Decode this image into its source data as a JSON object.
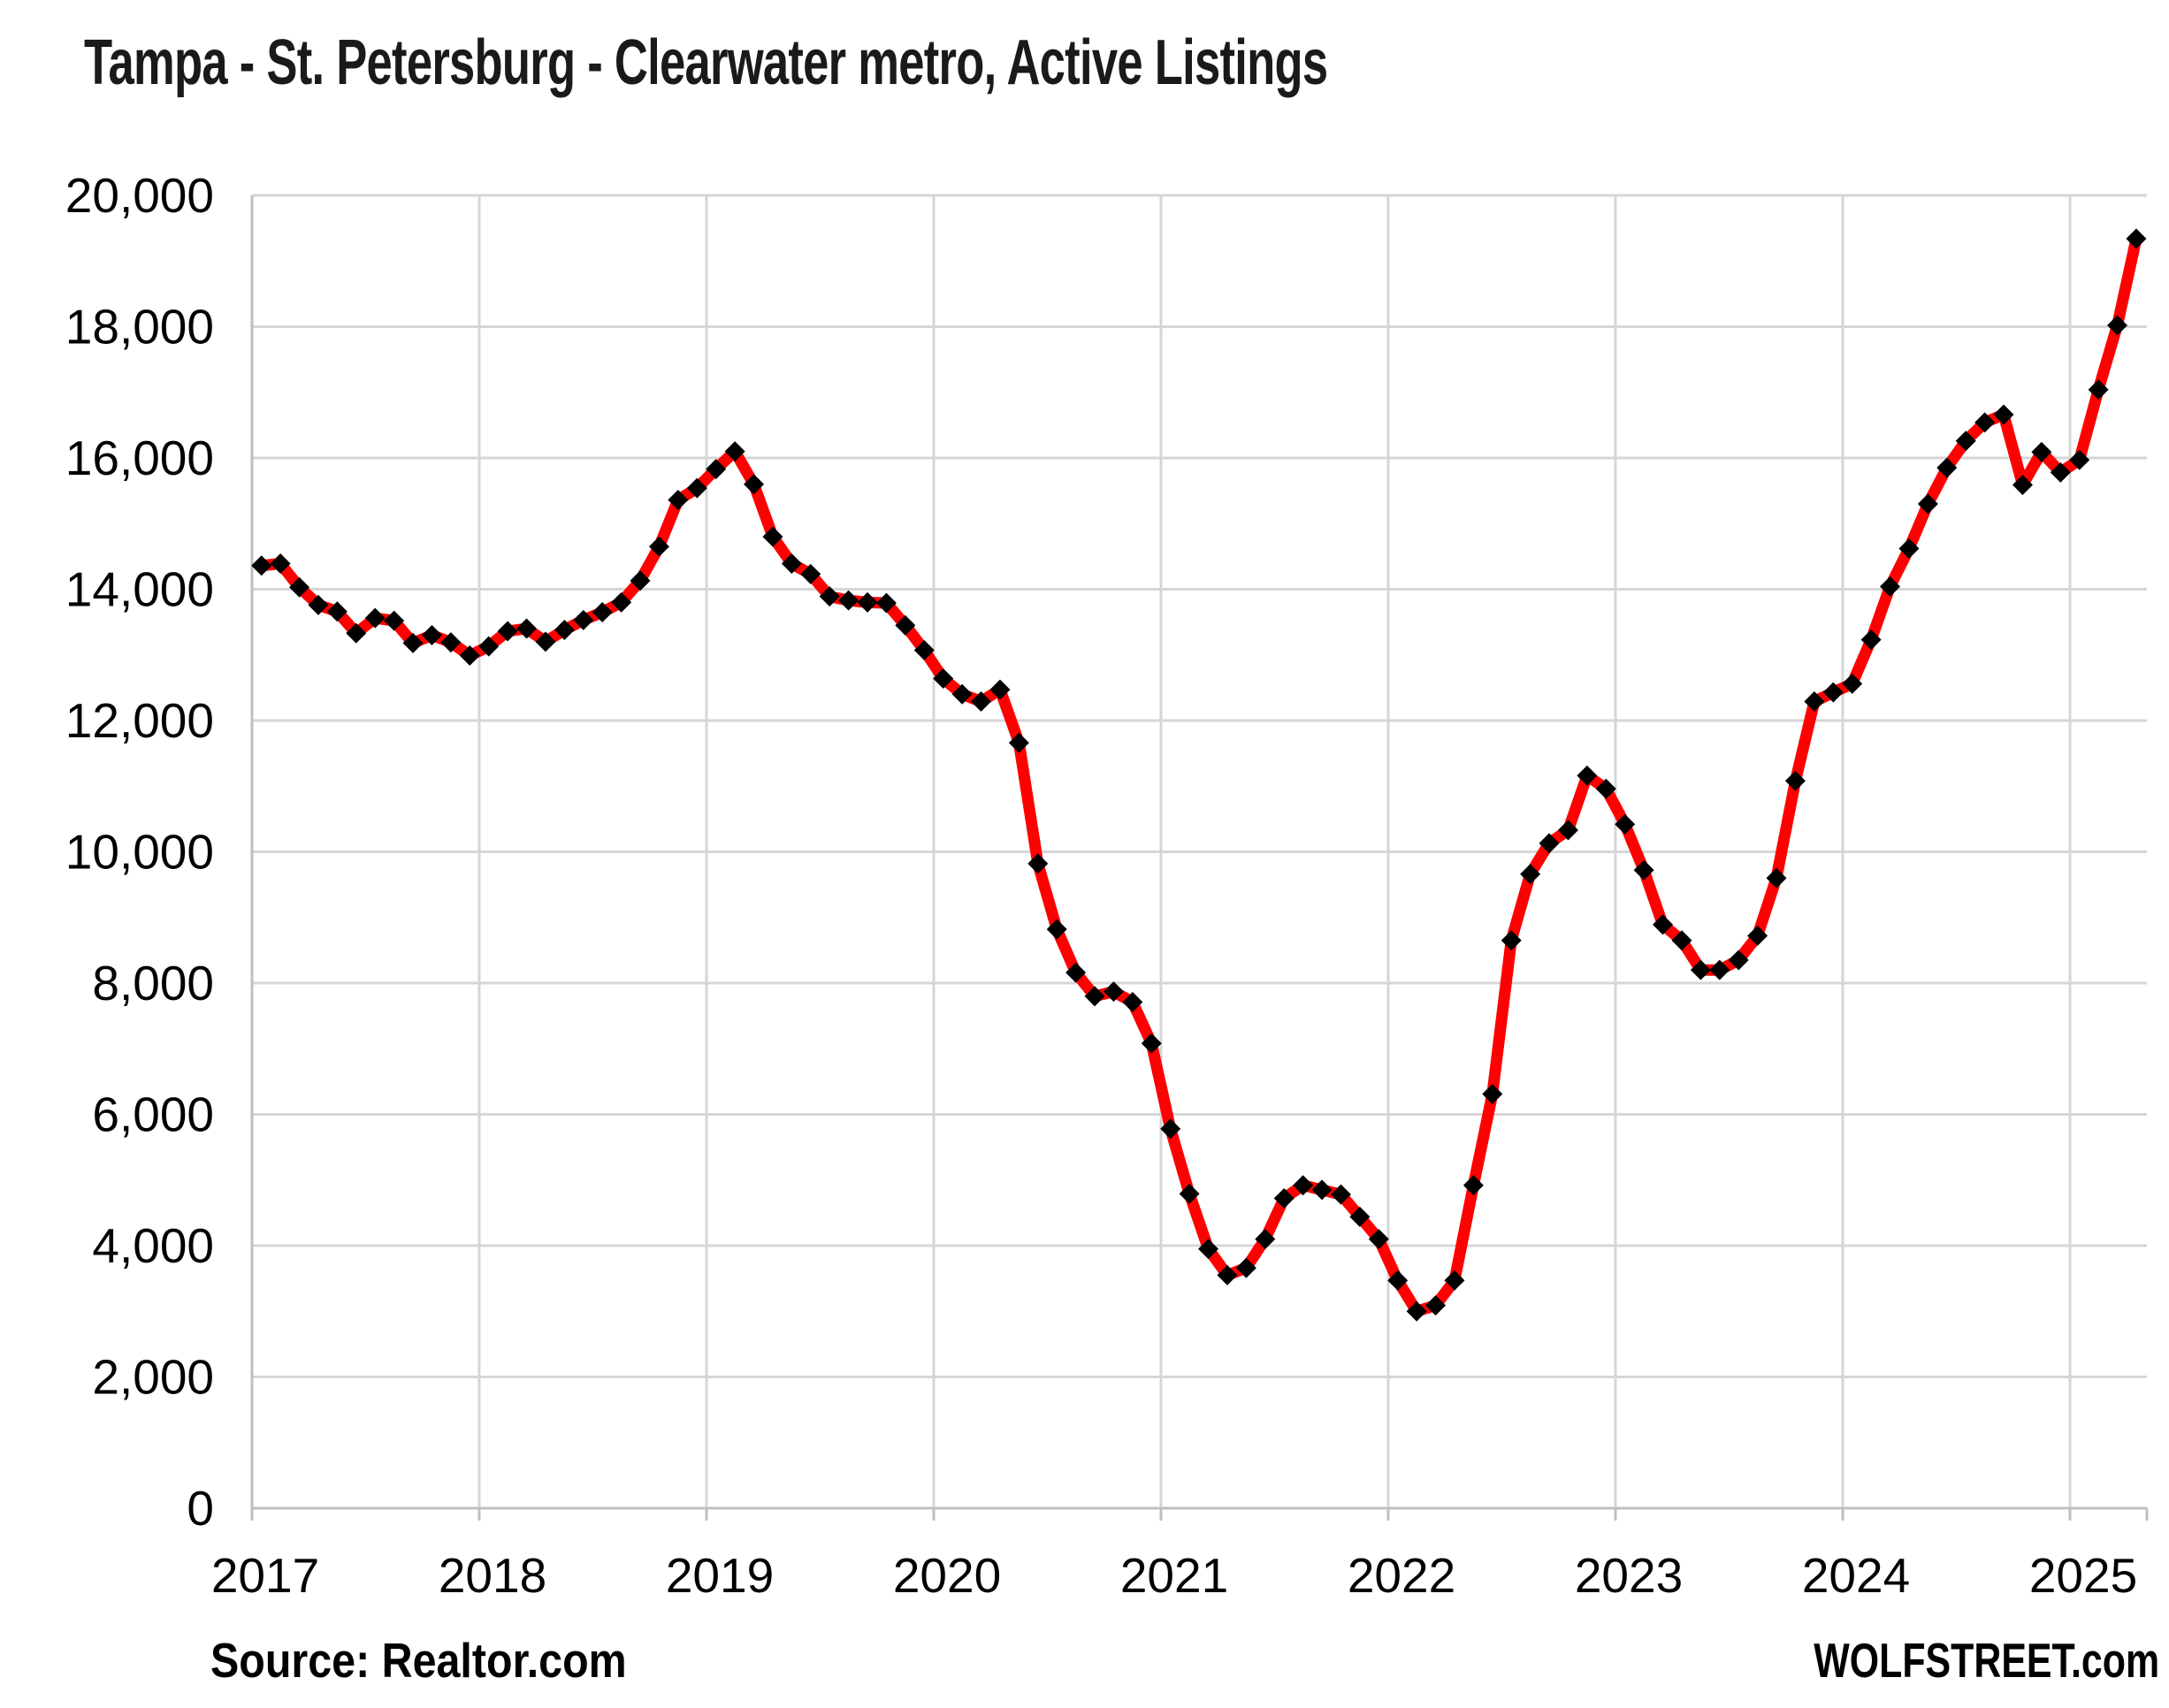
{
  "chart_data": {
    "type": "line",
    "title": "Tampa - St. Petersburg - Clearwater metro, Active Listings",
    "xlabel": "",
    "ylabel": "",
    "x_start": "2017-01",
    "x_end": "2025-04",
    "frequency": "monthly",
    "values": [
      14360,
      14390,
      14030,
      13760,
      13660,
      13330,
      13560,
      13520,
      13180,
      13300,
      13190,
      12990,
      13130,
      13360,
      13400,
      13200,
      13380,
      13530,
      13650,
      13800,
      14130,
      14650,
      15360,
      15540,
      15830,
      16100,
      15600,
      14800,
      14390,
      14230,
      13890,
      13830,
      13800,
      13790,
      13450,
      13070,
      12640,
      12400,
      12290,
      12470,
      11660,
      9820,
      8820,
      8160,
      7800,
      7870,
      7710,
      7080,
      5780,
      4790,
      3950,
      3550,
      3660,
      4100,
      4720,
      4920,
      4850,
      4780,
      4440,
      4100,
      3470,
      3000,
      3090,
      3470,
      4920,
      6310,
      8650,
      9660,
      10130,
      10330,
      11160,
      10960,
      10420,
      9720,
      8890,
      8650,
      8200,
      8200,
      8350,
      8720,
      9600,
      11080,
      12290,
      12430,
      12560,
      13230,
      14040,
      14620,
      15300,
      15850,
      16260,
      16540,
      16660,
      15590,
      16090,
      15780,
      15970,
      17040,
      18020,
      19340
    ],
    "x_tick_labels": [
      "2017",
      "2018",
      "2019",
      "2020",
      "2021",
      "2022",
      "2023",
      "2024",
      "2025"
    ],
    "y_ticks": [
      0,
      2000,
      4000,
      6000,
      8000,
      10000,
      12000,
      14000,
      16000,
      18000,
      20000
    ],
    "y_tick_labels": [
      "0",
      "2,000",
      "4,000",
      "6,000",
      "8,000",
      "10,000",
      "12,000",
      "14,000",
      "16,000",
      "18,000",
      "20,000"
    ],
    "ylim": [
      0,
      20000
    ],
    "grid": true,
    "legend": false,
    "line_color": "#FF0000",
    "marker_color": "#000000",
    "marker_shape": "diamond",
    "gridline_color": "#D6D6D6",
    "axis_color": "#BFBFBF",
    "text_color": "#000000",
    "background_color": "#FFFFFF"
  },
  "footer": {
    "source_label": "Source: Realtor.com",
    "brand_label": "WOLFSTREET.com"
  }
}
